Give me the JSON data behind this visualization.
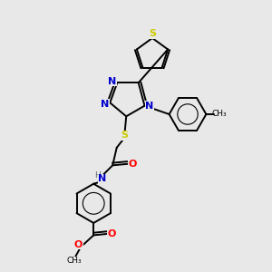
{
  "bg_color": "#e8e8e8",
  "atom_colors": {
    "S": "#cccc00",
    "N": "#0000cc",
    "O": "#ff0000",
    "C": "#000000",
    "H": "#607070"
  },
  "bond_color": "#000000",
  "bond_lw": 1.4,
  "font_size": 8.0
}
